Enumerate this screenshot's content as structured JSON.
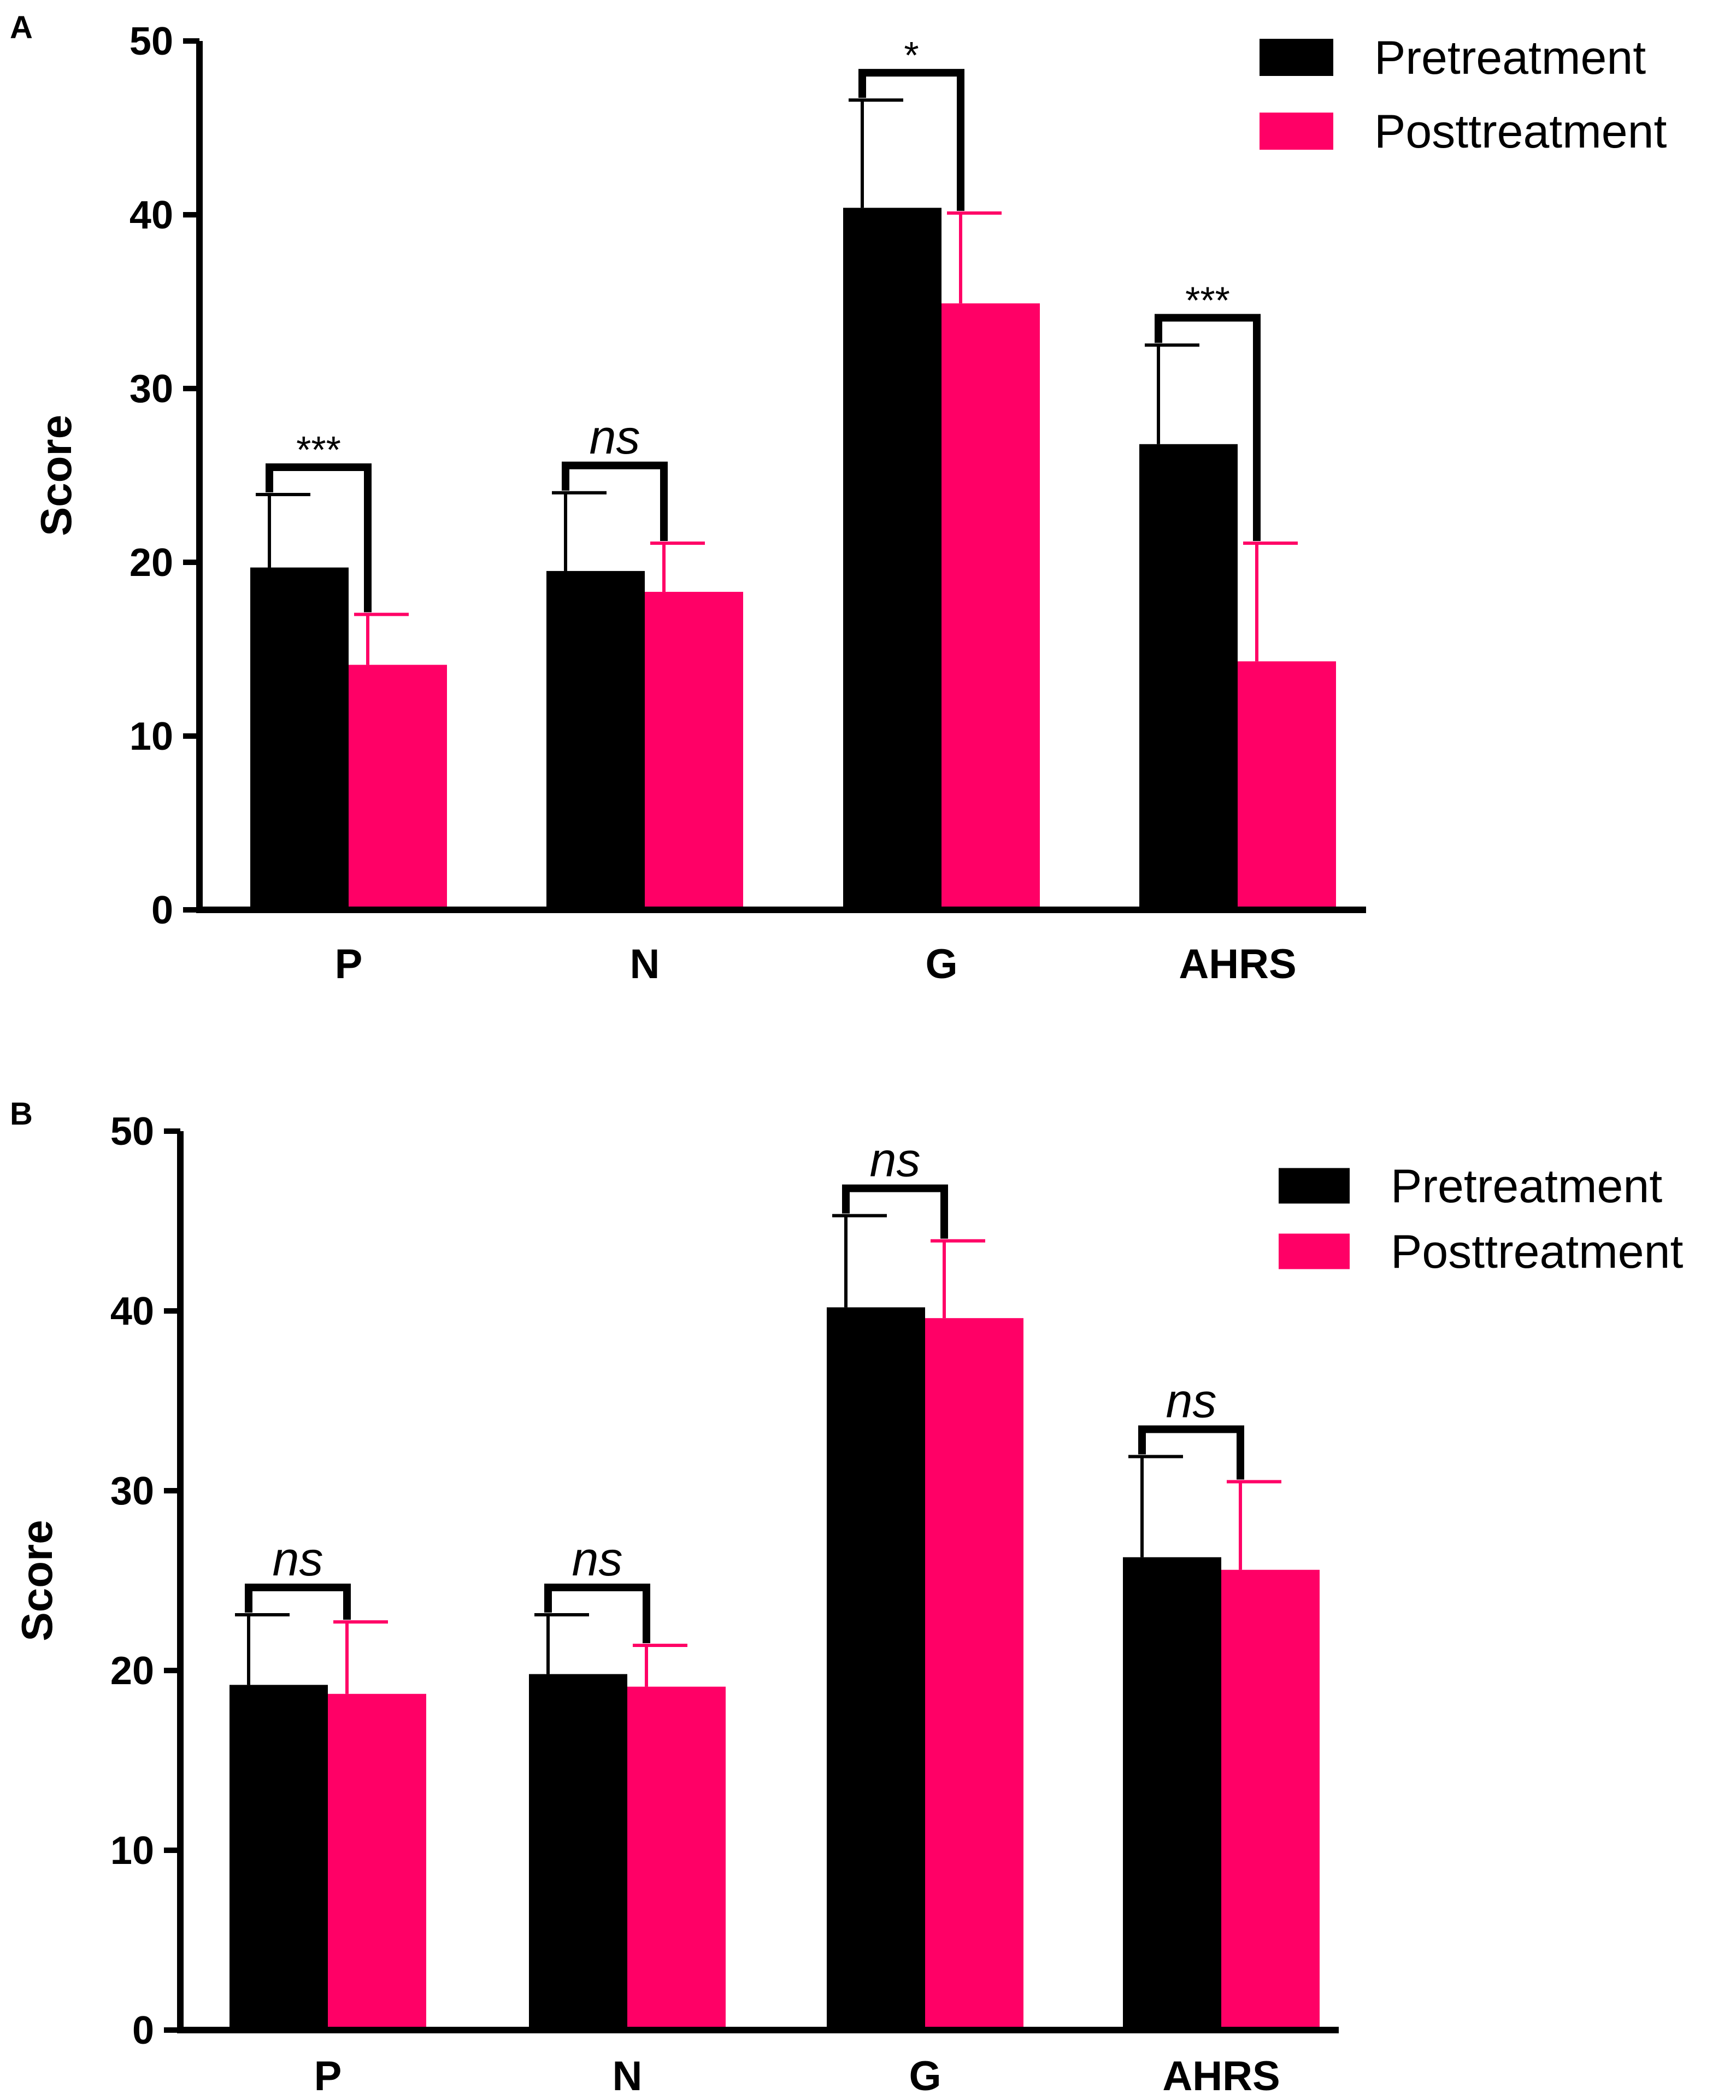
{
  "chart_data": [
    {
      "panel": "A",
      "type": "bar",
      "title": "",
      "xlabel": "",
      "ylabel": "Score",
      "ylim": [
        0,
        50
      ],
      "yticks": [
        "0",
        "10",
        "20",
        "30",
        "40",
        "50"
      ],
      "categories": [
        "P",
        "N",
        "G",
        "AHRS"
      ],
      "legend": {
        "placement": "top-right"
      },
      "series": [
        {
          "name": "Pretreatment",
          "color": "#000000",
          "values": [
            19.7,
            19.5,
            40.4,
            26.8
          ],
          "errors": [
            4.2,
            4.5,
            6.2,
            5.7
          ]
        },
        {
          "name": "Posttreatment",
          "color": "#ff0066",
          "values": [
            14.1,
            18.3,
            34.9,
            14.3
          ],
          "errors": [
            2.9,
            2.8,
            5.2,
            6.8
          ]
        }
      ],
      "significance": [
        "***",
        "ns",
        "*",
        "***"
      ]
    },
    {
      "panel": "B",
      "type": "bar",
      "title": "",
      "xlabel": "",
      "ylabel": "Score",
      "ylim": [
        0,
        50
      ],
      "yticks": [
        "0",
        "10",
        "20",
        "30",
        "40",
        "50"
      ],
      "categories": [
        "P",
        "N",
        "G",
        "AHRS"
      ],
      "legend": {
        "placement": "top-right"
      },
      "series": [
        {
          "name": "Pretreatment",
          "color": "#000000",
          "values": [
            19.2,
            19.8,
            40.2,
            26.3
          ],
          "errors": [
            3.9,
            3.3,
            5.1,
            5.6
          ]
        },
        {
          "name": "Posttreatment",
          "color": "#ff0066",
          "values": [
            18.7,
            19.1,
            39.6,
            25.6
          ],
          "errors": [
            4.0,
            2.3,
            4.3,
            4.9
          ]
        }
      ],
      "significance": [
        "ns",
        "ns",
        "ns",
        "ns"
      ]
    }
  ]
}
